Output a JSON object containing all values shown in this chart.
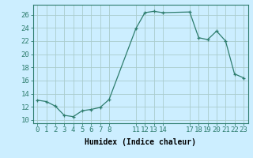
{
  "x": [
    0,
    1,
    2,
    3,
    4,
    5,
    6,
    7,
    8,
    11,
    12,
    13,
    14,
    17,
    18,
    19,
    20,
    21,
    22,
    23
  ],
  "y": [
    13.0,
    12.8,
    12.1,
    10.7,
    10.5,
    11.4,
    11.6,
    11.9,
    13.1,
    23.9,
    26.3,
    26.5,
    26.3,
    26.4,
    22.5,
    22.2,
    23.5,
    22.0,
    17.0,
    16.4
  ],
  "line_color": "#2e7d6e",
  "marker": "+",
  "marker_size": 3,
  "bg_color": "#cceeff",
  "grid_color": "#aacccc",
  "xlabel": "Humidex (Indice chaleur)",
  "xlim": [
    -0.5,
    23.5
  ],
  "ylim": [
    9.5,
    27.5
  ],
  "yticks": [
    10,
    12,
    14,
    16,
    18,
    20,
    22,
    24,
    26
  ],
  "xticks": [
    0,
    1,
    2,
    3,
    4,
    5,
    6,
    7,
    8,
    11,
    12,
    13,
    14,
    17,
    18,
    19,
    20,
    21,
    22,
    23
  ],
  "xlabel_fontsize": 7,
  "tick_fontsize": 6.5
}
